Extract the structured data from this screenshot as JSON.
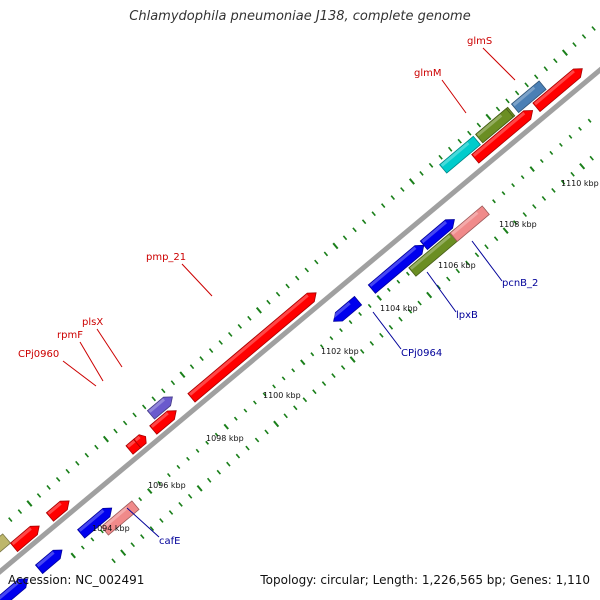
{
  "title": "Chlamydophila pneumoniae J138, complete genome",
  "footer": {
    "accession": "Accession: NC_002491",
    "summary": "Topology: circular; Length: 1,226,565 bp; Genes: 1,110"
  },
  "colors": {
    "red": "#ff0000",
    "blue": "#0000ee",
    "pink": "#f08a8a",
    "olive": "#6b8e23",
    "cyan": "#00cccc",
    "steel": "#4a7fb5",
    "violet": "#6a5acd",
    "khaki": "#bdb76b",
    "backbone": "#9a9a9a",
    "tick": "#1a7f1a",
    "label_red": "#cc0000",
    "label_blue": "#000099"
  },
  "kbp_labels": [
    "1094 kbp",
    "1096 kbp",
    "1098 kbp",
    "1100 kbp",
    "1102 kbp",
    "1104 kbp",
    "1106 kbp",
    "1108 kbp",
    "1110 kbp"
  ],
  "gene_labels": {
    "red": [
      "glmS",
      "glmM",
      "pmp_21",
      "plsX",
      "rpmF",
      "CPj0960"
    ],
    "blue": [
      "pcnB_2",
      "lpxB",
      "CPj0964",
      "cafE"
    ]
  }
}
